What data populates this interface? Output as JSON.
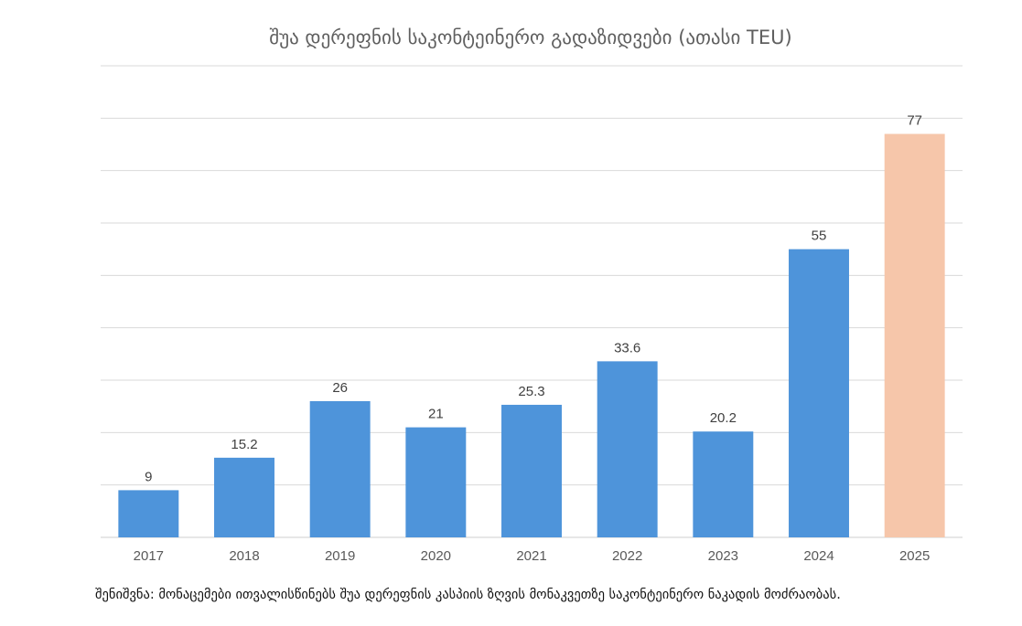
{
  "chart_data": {
    "type": "bar",
    "title": "შუა დერეფნის საკონტეინერო გადაზიდვები (ათასი TEU)",
    "categories": [
      "2017",
      "2018",
      "2019",
      "2020",
      "2021",
      "2022",
      "2023",
      "2024",
      "2025"
    ],
    "values": [
      9,
      15.2,
      26,
      21,
      25.3,
      33.6,
      20.2,
      55,
      77
    ],
    "value_labels": [
      "9",
      "15.2",
      "26",
      "21",
      "25.3",
      "33.6",
      "20.2",
      "55",
      "77"
    ],
    "ylim": [
      0,
      90
    ],
    "y_gridline_step": 10,
    "y_tick_labels_shown": false,
    "grid": true,
    "legend": "none",
    "colors": {
      "default_bar": "#4E94DA",
      "highlight_bar": "#F6C6AA",
      "gridline": "#d9d9d9"
    },
    "highlight_category": "2025"
  },
  "footnote": "შენიშვნა: მონაცემები ითვალისწინებს შუა დერეფნის კასპიის ზღვის მონაკვეთზე საკონტეინერო ნაკადის მოძრაობას."
}
